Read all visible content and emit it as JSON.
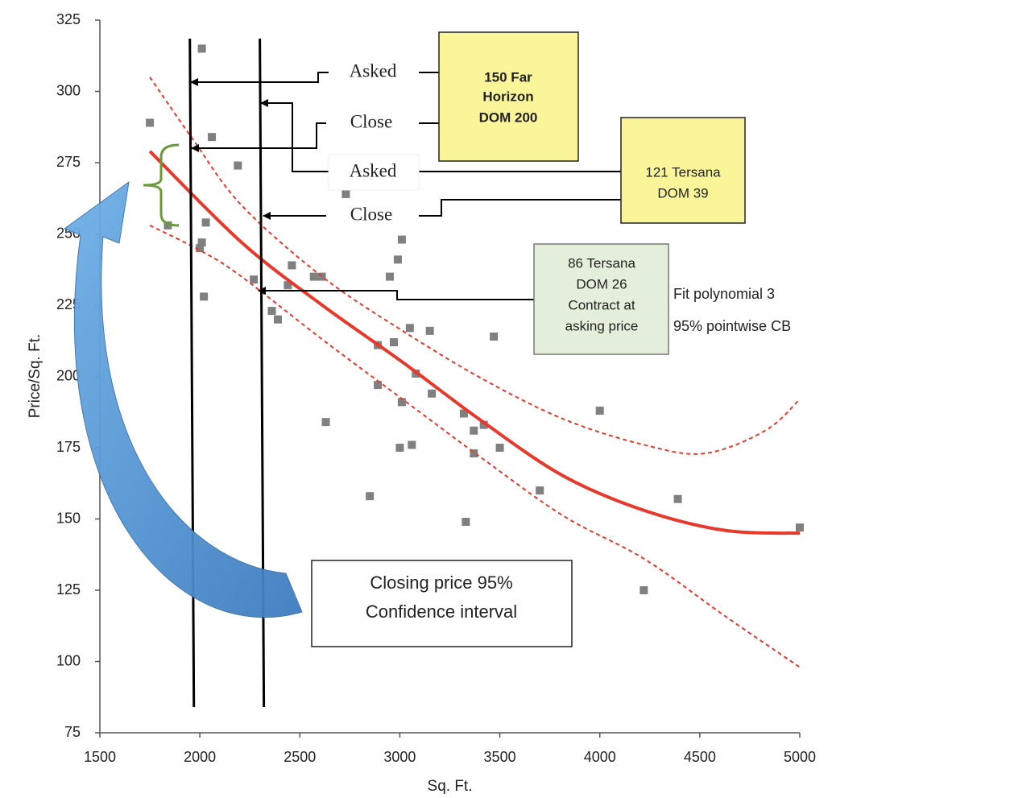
{
  "chart_data": {
    "type": "scatter",
    "xlabel": "Sq. Ft.",
    "ylabel": "Price/Sq. Ft.",
    "xlim": [
      1500,
      5000
    ],
    "ylim": [
      75,
      325
    ],
    "xticks": [
      1500,
      2000,
      2500,
      3000,
      3500,
      4000,
      4500,
      5000
    ],
    "yticks": [
      75,
      100,
      125,
      150,
      175,
      200,
      225,
      250,
      275,
      300,
      325
    ],
    "color": "#808080",
    "x": [
      1750,
      2010,
      2060,
      2190,
      1840,
      2030,
      2010,
      2000,
      2020,
      2270,
      2360,
      2390,
      2440,
      2460,
      2570,
      2610,
      2630,
      2730,
      2850,
      2890,
      2890,
      2950,
      2970,
      2990,
      3010,
      3000,
      3010,
      3050,
      3060,
      3080,
      3150,
      3160,
      3320,
      3330,
      3370,
      3370,
      3420,
      3470,
      3500,
      3700,
      4000,
      4220,
      4390,
      5000
    ],
    "y": [
      289,
      315,
      284,
      274,
      253,
      254,
      247,
      245,
      228,
      234,
      223,
      220,
      232,
      239,
      235,
      235,
      184,
      264,
      158,
      211,
      197,
      235,
      212,
      241,
      248,
      175,
      191,
      217,
      176,
      201,
      216,
      194,
      187,
      149,
      181,
      173,
      183,
      214,
      175,
      160,
      188,
      125,
      157,
      147
    ],
    "lines": [
      {
        "color": "#e8382a",
        "dashed": false,
        "x": [
          1750,
          2209,
          2612,
          3014,
          3417,
          3820,
          4222,
          4625,
          5000
        ],
        "y": [
          279,
          247,
          225,
          205,
          184,
          165,
          153,
          146,
          145
        ]
      },
      {
        "color": "#e8382a",
        "dashed": true,
        "x": [
          1750,
          1967,
          2209,
          2612,
          3014,
          3417,
          3820,
          4222,
          4524,
          4827,
          5000
        ],
        "y": [
          305,
          283,
          260,
          235,
          216,
          199,
          185,
          176,
          173,
          181,
          192
        ]
      },
      {
        "color": "#e8382a",
        "dashed": true,
        "x": [
          1750,
          2007,
          2209,
          2612,
          3014,
          3417,
          3820,
          4222,
          4625,
          5000
        ],
        "y": [
          253,
          244,
          235,
          213,
          192,
          171,
          151,
          136,
          116,
          98
        ]
      }
    ],
    "vlines": [
      1950,
      2300
    ],
    "annotations": {
      "asked_top": "Asked",
      "close_top": "Close",
      "asked_mid": "Asked",
      "close_mid": "Close",
      "far_horizon": [
        "150 Far",
        "Horizon",
        "DOM 200"
      ],
      "tersana_121": [
        "121 Tersana",
        "DOM 39"
      ],
      "tersana_86": [
        "86 Tersana",
        "DOM 26",
        "Contract at",
        "asking price"
      ],
      "fit_note": "Fit polynomial 3",
      "band_note": "95% pointwise CB",
      "ci_note": [
        "Closing price 95%",
        "Confidence interval"
      ]
    }
  }
}
